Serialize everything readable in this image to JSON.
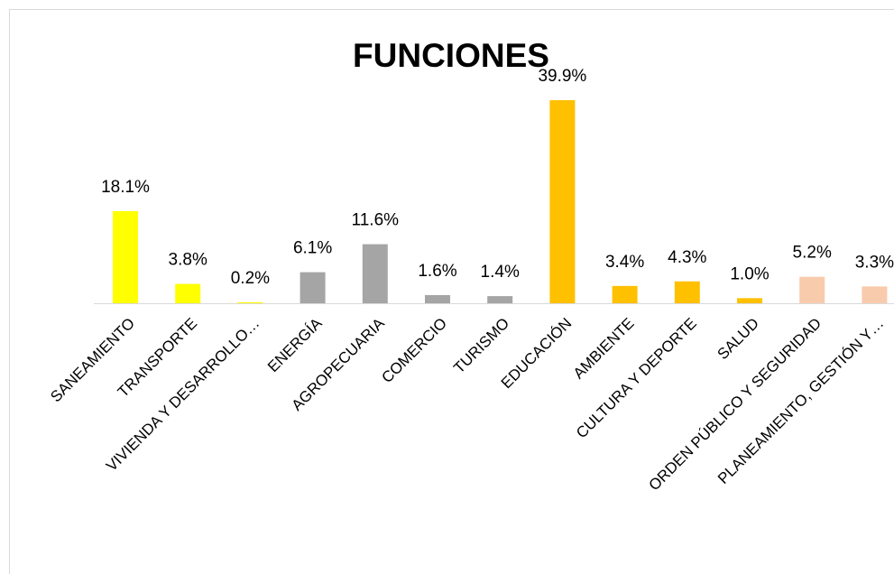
{
  "chart_data": {
    "type": "bar",
    "title": "FUNCIONES",
    "categories": [
      "SANEAMIENTO",
      "TRANSPORTE",
      "VIVIENDA Y DESARROLLO…",
      "ENERGÍA",
      "AGROPECUARIA",
      "COMERCIO",
      "TURISMO",
      "EDUCACIÓN",
      "AMBIENTE",
      "CULTURA Y DEPORTE",
      "SALUD",
      "ORDEN PÚBLICO Y SEGURIDAD",
      "PLANEAMIENTO, GESTIÓN Y…"
    ],
    "values": [
      18.1,
      3.8,
      0.2,
      6.1,
      11.6,
      1.6,
      1.4,
      39.9,
      3.4,
      4.3,
      1.0,
      5.2,
      3.3
    ],
    "value_labels": [
      "18.1%",
      "3.8%",
      "0.2%",
      "6.1%",
      "11.6%",
      "1.6%",
      "1.4%",
      "39.9%",
      "3.4%",
      "4.3%",
      "1.0%",
      "5.2%",
      "3.3%"
    ],
    "colors": [
      "#ffff00",
      "#ffff00",
      "#ffff00",
      "#a5a5a5",
      "#a5a5a5",
      "#a5a5a5",
      "#a5a5a5",
      "#ffc000",
      "#ffc000",
      "#ffc000",
      "#ffc000",
      "#f8cbad",
      "#f8cbad"
    ]
  }
}
